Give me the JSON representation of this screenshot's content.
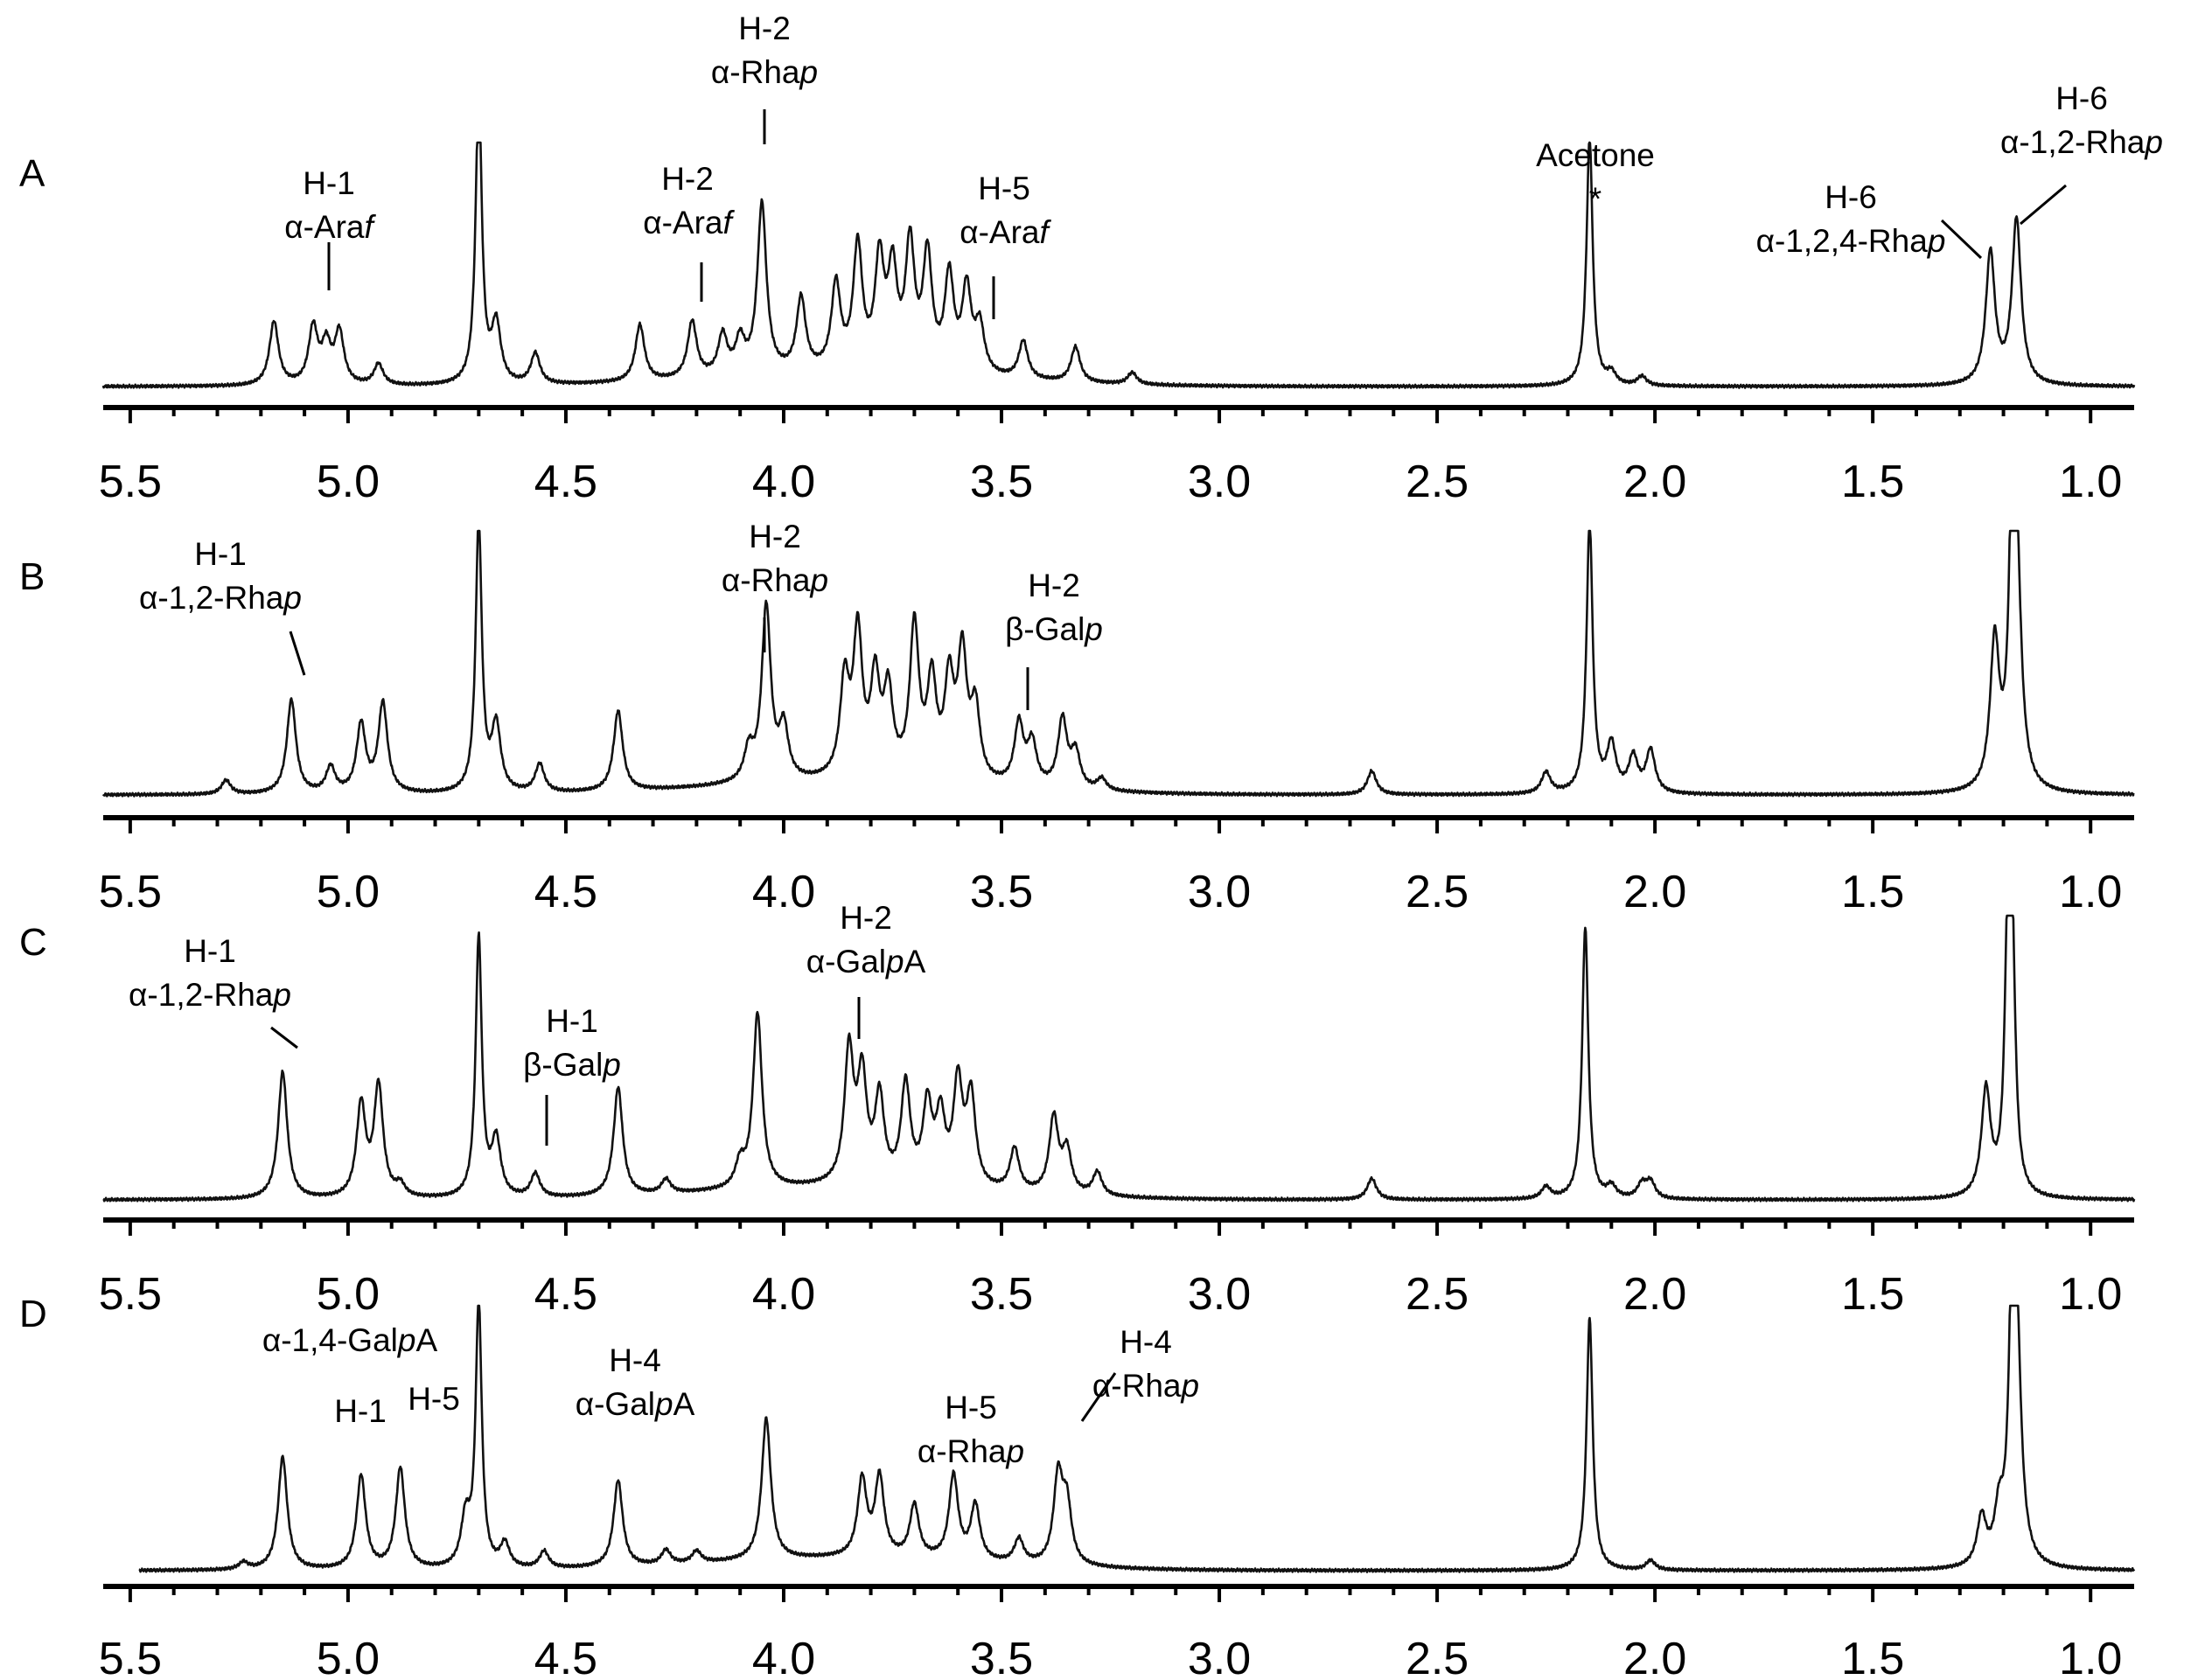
{
  "chart_data": {
    "type": "line",
    "x_range": [
      5.6,
      0.9
    ],
    "x_reversed": true,
    "ticks": [
      "5.5",
      "5.0",
      "4.5",
      "4.0",
      "3.5",
      "3.0",
      "2.5",
      "2.0",
      "1.5",
      "1.0"
    ],
    "tick_values": [
      5.5,
      5.0,
      4.5,
      4.0,
      3.5,
      3.0,
      2.5,
      2.0,
      1.5,
      1.0
    ],
    "grid": false,
    "panels": [
      {
        "label": "A",
        "peaks": [
          [
            5.17,
            0.27
          ],
          [
            5.08,
            0.24
          ],
          [
            5.05,
            0.16
          ],
          [
            5.02,
            0.22
          ],
          [
            4.93,
            0.09
          ],
          [
            4.7,
            1.25
          ],
          [
            4.66,
            0.25
          ],
          [
            4.57,
            0.13
          ],
          [
            4.33,
            0.24
          ],
          [
            4.21,
            0.24
          ],
          [
            4.14,
            0.17
          ],
          [
            4.1,
            0.14
          ],
          [
            4.05,
            0.72
          ],
          [
            3.96,
            0.31
          ],
          [
            3.88,
            0.36
          ],
          [
            3.83,
            0.52
          ],
          [
            3.78,
            0.45
          ],
          [
            3.75,
            0.4
          ],
          [
            3.71,
            0.52
          ],
          [
            3.67,
            0.48
          ],
          [
            3.62,
            0.4
          ],
          [
            3.58,
            0.35
          ],
          [
            3.55,
            0.2
          ],
          [
            3.45,
            0.16
          ],
          [
            3.33,
            0.15
          ],
          [
            3.2,
            0.05
          ],
          [
            2.15,
            1.05
          ],
          [
            2.1,
            0.05
          ],
          [
            2.03,
            0.04
          ],
          [
            1.23,
            0.56
          ],
          [
            1.17,
            0.7
          ]
        ],
        "annotations": [
          {
            "lines": [
              "H-1",
              "α-Araf"
            ],
            "x": 5.09
          },
          {
            "lines": [
              "H-2",
              "α-Rhap"
            ],
            "x": 4.06
          },
          {
            "lines": [
              "H-2",
              "α-Araf"
            ],
            "x": 4.21
          },
          {
            "lines": [
              "H-5",
              "α-Araf"
            ],
            "x": 3.54
          },
          {
            "lines": [
              "Acetone",
              "*"
            ],
            "x": 2.14
          },
          {
            "lines": [
              "H-6",
              "α-1,2,4-Rhap"
            ],
            "x": 1.24
          },
          {
            "lines": [
              "H-6",
              "α-1,2-Rhap"
            ],
            "x": 1.17
          }
        ]
      },
      {
        "label": "B",
        "peaks": [
          [
            5.28,
            0.06
          ],
          [
            5.13,
            0.4
          ],
          [
            5.04,
            0.11
          ],
          [
            4.97,
            0.29
          ],
          [
            4.92,
            0.38
          ],
          [
            4.7,
            1.15
          ],
          [
            4.66,
            0.28
          ],
          [
            4.56,
            0.12
          ],
          [
            4.38,
            0.34
          ],
          [
            4.08,
            0.13
          ],
          [
            4.04,
            0.74
          ],
          [
            4.0,
            0.22
          ],
          [
            3.86,
            0.4
          ],
          [
            3.83,
            0.6
          ],
          [
            3.79,
            0.4
          ],
          [
            3.76,
            0.35
          ],
          [
            3.7,
            0.64
          ],
          [
            3.66,
            0.4
          ],
          [
            3.62,
            0.4
          ],
          [
            3.59,
            0.52
          ],
          [
            3.56,
            0.3
          ],
          [
            3.46,
            0.26
          ],
          [
            3.43,
            0.18
          ],
          [
            3.36,
            0.29
          ],
          [
            3.33,
            0.15
          ],
          [
            3.27,
            0.05
          ],
          [
            2.65,
            0.1
          ],
          [
            2.25,
            0.09
          ],
          [
            2.15,
            1.15
          ],
          [
            2.1,
            0.2
          ],
          [
            2.05,
            0.15
          ],
          [
            2.01,
            0.18
          ],
          [
            1.22,
            0.62
          ],
          [
            1.18,
            0.98
          ],
          [
            1.17,
            0.9
          ]
        ],
        "annotations": [
          {
            "lines": [
              "H-1",
              "α-1,2-Rhap"
            ],
            "x": 5.13
          },
          {
            "lines": [
              "H-2",
              "α-Rhap"
            ],
            "x": 4.04
          },
          {
            "lines": [
              "H-2",
              "β-Galp"
            ],
            "x": 3.46
          }
        ]
      },
      {
        "label": "C",
        "peaks": [
          [
            5.15,
            0.54
          ],
          [
            4.97,
            0.39
          ],
          [
            4.93,
            0.47
          ],
          [
            4.88,
            0.05
          ],
          [
            4.7,
            1.1
          ],
          [
            4.66,
            0.24
          ],
          [
            4.57,
            0.1
          ],
          [
            4.38,
            0.46
          ],
          [
            4.27,
            0.06
          ],
          [
            4.1,
            0.1
          ],
          [
            4.06,
            0.74
          ],
          [
            3.85,
            0.56
          ],
          [
            3.82,
            0.44
          ],
          [
            3.78,
            0.36
          ],
          [
            3.72,
            0.42
          ],
          [
            3.67,
            0.33
          ],
          [
            3.64,
            0.28
          ],
          [
            3.6,
            0.43
          ],
          [
            3.57,
            0.38
          ],
          [
            3.47,
            0.18
          ],
          [
            3.38,
            0.32
          ],
          [
            3.35,
            0.18
          ],
          [
            3.28,
            0.1
          ],
          [
            2.65,
            0.09
          ],
          [
            2.25,
            0.05
          ],
          [
            2.16,
            1.15
          ],
          [
            2.1,
            0.05
          ],
          [
            2.03,
            0.06
          ],
          [
            2.01,
            0.07
          ],
          [
            1.24,
            0.45
          ],
          [
            1.19,
            1.0
          ],
          [
            1.18,
            0.95
          ]
        ],
        "annotations": [
          {
            "lines": [
              "H-1",
              "α-1,2-Rhap"
            ],
            "x": 5.15
          },
          {
            "lines": [
              "H-1",
              "β-Galp"
            ],
            "x": 4.56
          },
          {
            "lines": [
              "H-2",
              "α-GalpA"
            ],
            "x": 3.84
          }
        ]
      },
      {
        "label": "D",
        "peaks": [
          [
            5.24,
            0.03
          ],
          [
            5.15,
            0.47
          ],
          [
            4.97,
            0.39
          ],
          [
            4.88,
            0.42
          ],
          [
            4.73,
            0.2
          ],
          [
            4.7,
            1.1
          ],
          [
            4.64,
            0.1
          ],
          [
            4.55,
            0.07
          ],
          [
            4.38,
            0.36
          ],
          [
            4.27,
            0.06
          ],
          [
            4.2,
            0.05
          ],
          [
            4.04,
            0.59
          ],
          [
            3.82,
            0.32
          ],
          [
            3.78,
            0.33
          ],
          [
            3.7,
            0.22
          ],
          [
            3.61,
            0.35
          ],
          [
            3.56,
            0.23
          ],
          [
            3.46,
            0.1
          ],
          [
            3.37,
            0.36
          ],
          [
            3.35,
            0.24
          ],
          [
            2.15,
            1.05
          ],
          [
            2.01,
            0.04
          ],
          [
            1.25,
            0.2
          ],
          [
            1.21,
            0.2
          ],
          [
            1.18,
            0.95
          ],
          [
            1.17,
            0.9
          ]
        ],
        "annotations": [
          {
            "lines": [
              "α-1,4-GalpA"
            ],
            "x": 4.97
          },
          {
            "lines": [
              "H-1"
            ],
            "x": 4.98
          },
          {
            "lines": [
              "H-5"
            ],
            "x": 4.87
          },
          {
            "lines": [
              "H-4",
              "α-GalpA"
            ],
            "x": 4.38
          },
          {
            "lines": [
              "H-5",
              "α-Rhap"
            ],
            "x": 3.62
          },
          {
            "lines": [
              "H-4",
              "α-Rhap"
            ],
            "x": 3.37
          }
        ]
      }
    ]
  }
}
